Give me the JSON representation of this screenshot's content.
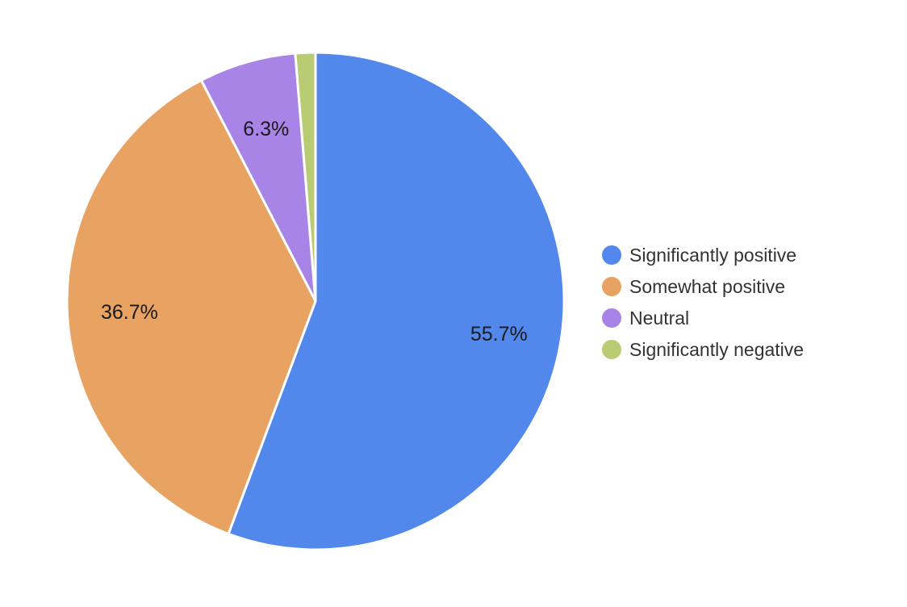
{
  "chart_data": {
    "type": "pie",
    "title": "",
    "legend_position": "right",
    "slices": [
      {
        "name": "Significantly positive",
        "value": 55.7,
        "label": "55.7%",
        "color": "#5288ec"
      },
      {
        "name": "Somewhat positive",
        "value": 36.7,
        "label": "36.7%",
        "color": "#e8a362"
      },
      {
        "name": "Neutral",
        "value": 6.3,
        "label": "6.3%",
        "color": "#a884e6"
      },
      {
        "name": "Significantly negative",
        "value": 1.3,
        "label": "",
        "color": "#b9cc74"
      }
    ]
  }
}
